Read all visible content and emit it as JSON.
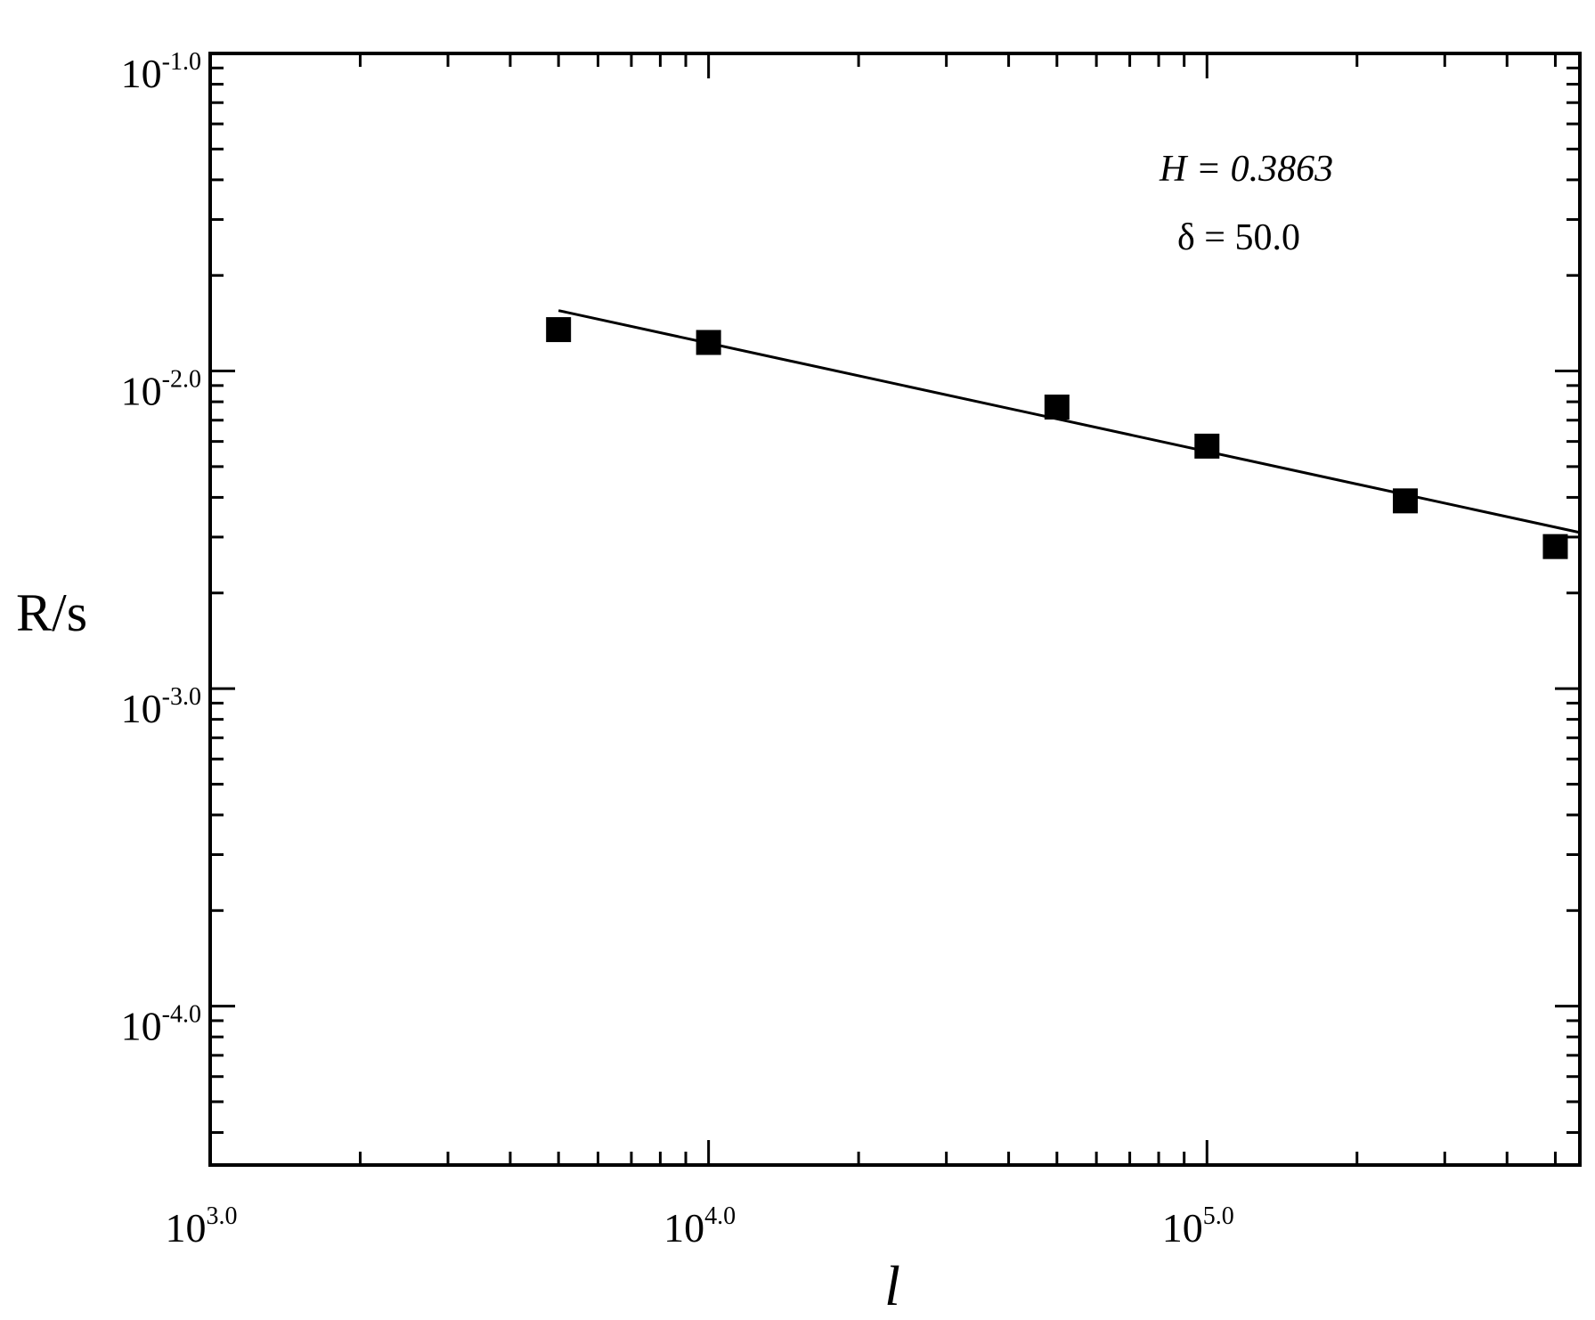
{
  "chart_data": {
    "type": "scatter",
    "title": "",
    "xlabel": "l",
    "ylabel": "R/s",
    "xscale": "log",
    "yscale": "log",
    "xlim": [
      1000,
      560000
    ],
    "ylim": [
      3.16e-05,
      0.1
    ],
    "grid": false,
    "x_ticks": [
      {
        "value": 1000,
        "base": "10",
        "exp": "3.0"
      },
      {
        "value": 10000,
        "base": "10",
        "exp": "4.0"
      },
      {
        "value": 100000,
        "base": "10",
        "exp": "5.0"
      }
    ],
    "y_ticks": [
      {
        "value": 0.1,
        "base": "10",
        "exp": "-1.0"
      },
      {
        "value": 0.01,
        "base": "10",
        "exp": "-2.0"
      },
      {
        "value": 0.001,
        "base": "10",
        "exp": "-3.0"
      },
      {
        "value": 0.0001,
        "base": "10",
        "exp": "-4.0"
      }
    ],
    "series": [
      {
        "marker": "filled-square",
        "color": "#000000",
        "x": [
          5000,
          10000,
          50000,
          100000,
          250000,
          500000
        ],
        "y": [
          0.0135,
          0.0123,
          0.0077,
          0.0058,
          0.0039,
          0.0028
        ]
      }
    ],
    "fit_line": {
      "color": "#000000",
      "x": [
        5000,
        560000
      ],
      "y": [
        0.0155,
        0.0031
      ]
    },
    "annotations": [
      {
        "text": "H = 0.3863",
        "style": "italic"
      },
      {
        "text": "δ = 50.0",
        "style": "normal"
      }
    ]
  }
}
